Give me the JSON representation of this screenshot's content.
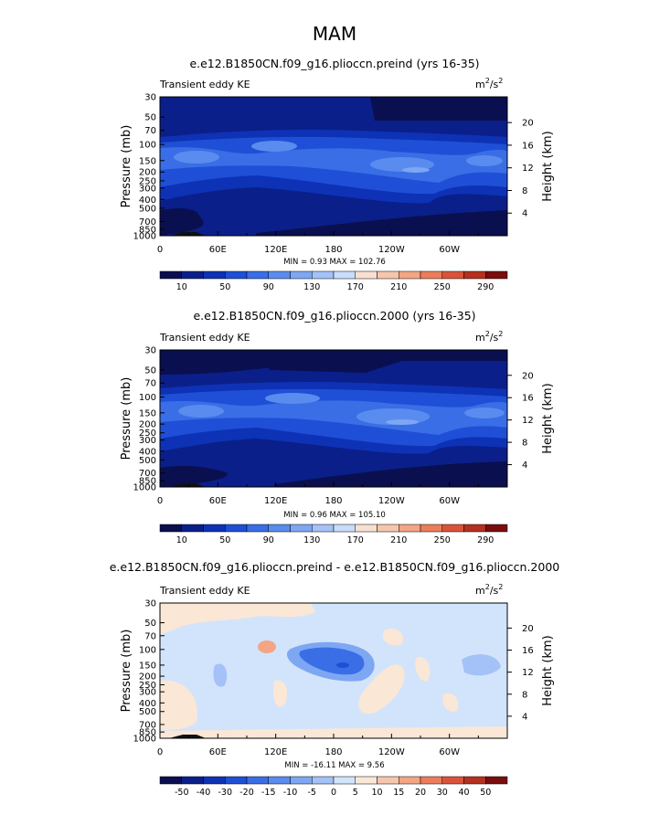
{
  "page": {
    "title": "MAM"
  },
  "colors": {
    "seq": [
      "#0a0f4f",
      "#0b1f8a",
      "#0d32b5",
      "#1f4fd6",
      "#3a6ee6",
      "#5a8bee",
      "#7ea7f3",
      "#a4c2f7",
      "#c8dcfb",
      "#f7e0d0",
      "#f5c6ad",
      "#f3a585",
      "#eb7d5a",
      "#d9533a",
      "#b5301f",
      "#7a0d0d"
    ],
    "diff": [
      "#0a0f4f",
      "#0b1f8a",
      "#0d32b5",
      "#1f4fd6",
      "#3a6ee6",
      "#5a8bee",
      "#7ea7f3",
      "#a4c2f7",
      "#d2e4fb",
      "#fbe7d6",
      "#f5c6ad",
      "#f3a585",
      "#eb7d5a",
      "#d9533a",
      "#b5301f",
      "#7a0d0d"
    ],
    "land": "#111111"
  },
  "chart_data": [
    {
      "type": "heatmap",
      "title": "e.e12.B1850CN.f09_g16.plioccn.preind (yrs 16-35)",
      "subtitle": "Transient eddy KE",
      "units_base": "m",
      "units_exp1": "2",
      "units_mid": "/s",
      "units_exp2": "2",
      "ylabel": "Pressure (mb)",
      "ylabel2": "Height (km)",
      "x_ticks": [
        "0",
        "60E",
        "120E",
        "180",
        "120W",
        "60W"
      ],
      "x_tick_lons": [
        0,
        60,
        120,
        180,
        240,
        300
      ],
      "y_ticks": [
        "30",
        "50",
        "70",
        "100",
        "150",
        "200",
        "250",
        "300",
        "400",
        "500",
        "700",
        "850",
        "1000"
      ],
      "y_tick_values": [
        30,
        50,
        70,
        100,
        150,
        200,
        250,
        300,
        400,
        500,
        700,
        850,
        1000
      ],
      "height_ticks": [
        "20",
        "16",
        "12",
        "8",
        "4"
      ],
      "height_values": [
        20,
        16,
        12,
        8,
        4
      ],
      "stats": "MIN =    0.93   MAX = 102.76",
      "colorbar_labels": [
        "10",
        "50",
        "90",
        "130",
        "170",
        "210",
        "250",
        "290"
      ],
      "levels": [
        10,
        30,
        50,
        70,
        90,
        110,
        130,
        150,
        170,
        190,
        210,
        230,
        250,
        270,
        290
      ],
      "palette": "seq"
    },
    {
      "type": "heatmap",
      "title": "e.e12.B1850CN.f09_g16.plioccn.2000 (yrs 16-35)",
      "subtitle": "Transient eddy KE",
      "units_base": "m",
      "units_exp1": "2",
      "units_mid": "/s",
      "units_exp2": "2",
      "ylabel": "Pressure (mb)",
      "ylabel2": "Height (km)",
      "x_ticks": [
        "0",
        "60E",
        "120E",
        "180",
        "120W",
        "60W"
      ],
      "x_tick_lons": [
        0,
        60,
        120,
        180,
        240,
        300
      ],
      "y_ticks": [
        "30",
        "50",
        "70",
        "100",
        "150",
        "200",
        "250",
        "300",
        "400",
        "500",
        "700",
        "850",
        "1000"
      ],
      "y_tick_values": [
        30,
        50,
        70,
        100,
        150,
        200,
        250,
        300,
        400,
        500,
        700,
        850,
        1000
      ],
      "height_ticks": [
        "20",
        "16",
        "12",
        "8",
        "4"
      ],
      "height_values": [
        20,
        16,
        12,
        8,
        4
      ],
      "stats": "MIN =    0.96   MAX = 105.10",
      "colorbar_labels": [
        "10",
        "50",
        "90",
        "130",
        "170",
        "210",
        "250",
        "290"
      ],
      "levels": [
        10,
        30,
        50,
        70,
        90,
        110,
        130,
        150,
        170,
        190,
        210,
        230,
        250,
        270,
        290
      ],
      "palette": "seq"
    },
    {
      "type": "heatmap",
      "title": "e.e12.B1850CN.f09_g16.plioccn.preind - e.e12.B1850CN.f09_g16.plioccn.2000",
      "subtitle": "Transient eddy KE",
      "units_base": "m",
      "units_exp1": "2",
      "units_mid": "/s",
      "units_exp2": "2",
      "ylabel": "Pressure (mb)",
      "ylabel2": "Height (km)",
      "x_ticks": [
        "0",
        "60E",
        "120E",
        "180",
        "120W",
        "60W"
      ],
      "x_tick_lons": [
        0,
        60,
        120,
        180,
        240,
        300
      ],
      "y_ticks": [
        "30",
        "50",
        "70",
        "100",
        "150",
        "200",
        "250",
        "300",
        "400",
        "500",
        "700",
        "850",
        "1000"
      ],
      "y_tick_values": [
        30,
        50,
        70,
        100,
        150,
        200,
        250,
        300,
        400,
        500,
        700,
        850,
        1000
      ],
      "height_ticks": [
        "20",
        "16",
        "12",
        "8",
        "4"
      ],
      "height_values": [
        20,
        16,
        12,
        8,
        4
      ],
      "stats": "MIN = -16.11   MAX =    9.56",
      "colorbar_labels": [
        "-50",
        "-40",
        "-30",
        "-20",
        "-15",
        "-10",
        "-5",
        "0",
        "5",
        "10",
        "15",
        "20",
        "30",
        "40",
        "50"
      ],
      "levels": [
        -50,
        -40,
        -30,
        -20,
        -15,
        -10,
        -5,
        0,
        5,
        10,
        15,
        20,
        30,
        40,
        50
      ],
      "palette": "diff"
    }
  ]
}
